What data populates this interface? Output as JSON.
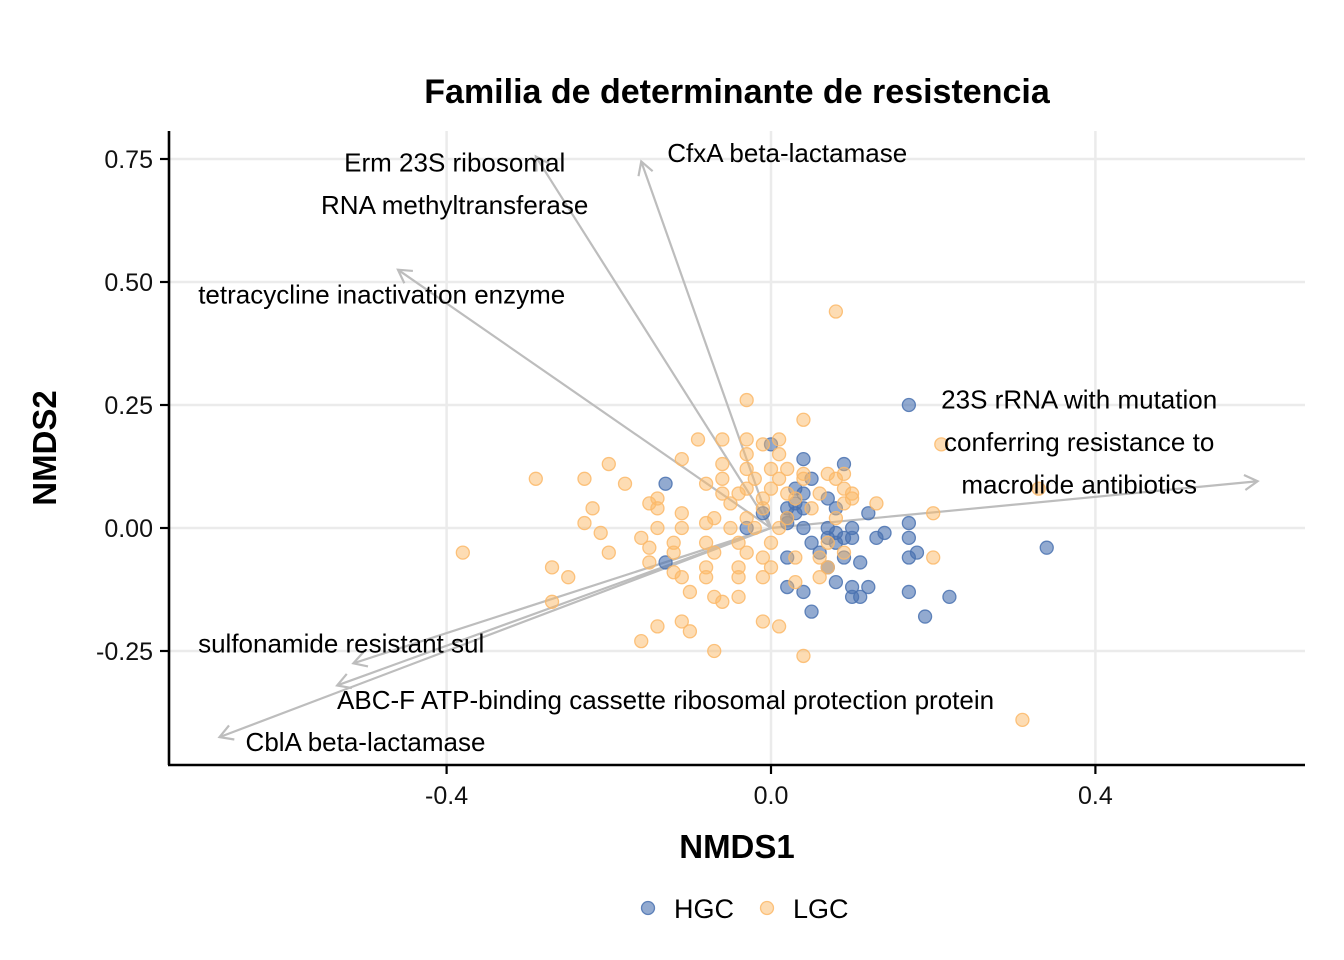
{
  "chart_data": {
    "type": "scatter",
    "title": "Familia de determinante de resistencia",
    "xlabel": "NMDS1",
    "ylabel": "NMDS2",
    "xlim": [
      -0.74,
      0.66
    ],
    "ylim": [
      -0.47,
      0.81
    ],
    "x_ticks": [
      -0.4,
      0.0,
      0.4
    ],
    "x_tick_labels": [
      "-0.4",
      "0.0",
      "0.4"
    ],
    "y_ticks": [
      -0.25,
      0.0,
      0.25,
      0.5,
      0.75
    ],
    "y_tick_labels": [
      "-0.25",
      "0.00",
      "0.25",
      "0.50",
      "0.75"
    ],
    "grid": true,
    "legend_position": "bottom",
    "series": [
      {
        "name": "HGC",
        "color": "#4a72b0",
        "points": [
          [
            0.0,
            0.17
          ],
          [
            0.04,
            0.14
          ],
          [
            0.09,
            0.13
          ],
          [
            0.17,
            0.25
          ],
          [
            0.34,
            -0.04
          ],
          [
            0.05,
            0.1
          ],
          [
            0.07,
            0.06
          ],
          [
            0.03,
            0.08
          ],
          [
            0.04,
            0.07
          ],
          [
            0.03,
            0.05
          ],
          [
            0.04,
            0.04
          ],
          [
            0.02,
            0.04
          ],
          [
            0.03,
            0.03
          ],
          [
            0.02,
            0.02
          ],
          [
            0.02,
            0.01
          ],
          [
            0.04,
            0.0
          ],
          [
            0.07,
            0.0
          ],
          [
            0.08,
            -0.01
          ],
          [
            0.09,
            -0.02
          ],
          [
            0.07,
            -0.02
          ],
          [
            0.05,
            -0.03
          ],
          [
            0.08,
            -0.03
          ],
          [
            0.1,
            0.0
          ],
          [
            0.12,
            0.03
          ],
          [
            0.14,
            -0.01
          ],
          [
            0.13,
            -0.02
          ],
          [
            0.1,
            -0.02
          ],
          [
            0.08,
            0.04
          ],
          [
            -0.01,
            0.03
          ],
          [
            -0.03,
            0.0
          ],
          [
            0.17,
            0.01
          ],
          [
            0.17,
            -0.02
          ],
          [
            0.02,
            -0.06
          ],
          [
            0.06,
            -0.05
          ],
          [
            0.09,
            -0.06
          ],
          [
            0.11,
            -0.07
          ],
          [
            0.07,
            -0.08
          ],
          [
            0.17,
            -0.06
          ],
          [
            0.18,
            -0.05
          ],
          [
            0.02,
            -0.12
          ],
          [
            0.04,
            -0.13
          ],
          [
            0.08,
            -0.11
          ],
          [
            0.1,
            -0.12
          ],
          [
            0.12,
            -0.12
          ],
          [
            0.1,
            -0.14
          ],
          [
            0.11,
            -0.14
          ],
          [
            0.05,
            -0.17
          ],
          [
            0.17,
            -0.13
          ],
          [
            0.19,
            -0.18
          ],
          [
            0.22,
            -0.14
          ],
          [
            -0.13,
            0.09
          ],
          [
            -0.13,
            -0.07
          ]
        ]
      },
      {
        "name": "LGC",
        "color": "#fbb968",
        "points": [
          [
            0.08,
            0.44
          ],
          [
            -0.03,
            0.26
          ],
          [
            0.04,
            0.22
          ],
          [
            0.21,
            0.17
          ],
          [
            0.33,
            0.08
          ],
          [
            0.2,
            0.03
          ],
          [
            0.2,
            -0.06
          ],
          [
            0.31,
            -0.39
          ],
          [
            -0.38,
            -0.05
          ],
          [
            -0.29,
            0.1
          ],
          [
            -0.23,
            0.1
          ],
          [
            -0.2,
            0.13
          ],
          [
            -0.18,
            0.09
          ],
          [
            -0.22,
            0.04
          ],
          [
            -0.23,
            0.01
          ],
          [
            -0.21,
            -0.01
          ],
          [
            -0.2,
            -0.05
          ],
          [
            -0.27,
            -0.08
          ],
          [
            -0.25,
            -0.1
          ],
          [
            -0.27,
            -0.15
          ],
          [
            -0.15,
            0.05
          ],
          [
            -0.14,
            0.06
          ],
          [
            -0.14,
            0.04
          ],
          [
            -0.11,
            0.14
          ],
          [
            -0.09,
            0.18
          ],
          [
            -0.06,
            0.18
          ],
          [
            -0.03,
            0.18
          ],
          [
            -0.01,
            0.17
          ],
          [
            0.01,
            0.18
          ],
          [
            0.01,
            0.15
          ],
          [
            -0.03,
            0.15
          ],
          [
            -0.06,
            0.13
          ],
          [
            -0.03,
            0.12
          ],
          [
            0.0,
            0.12
          ],
          [
            0.02,
            0.12
          ],
          [
            0.04,
            0.11
          ],
          [
            0.07,
            0.11
          ],
          [
            0.09,
            0.11
          ],
          [
            -0.06,
            0.1
          ],
          [
            -0.02,
            0.1
          ],
          [
            0.01,
            0.1
          ],
          [
            0.04,
            0.1
          ],
          [
            0.08,
            0.1
          ],
          [
            0.09,
            0.08
          ],
          [
            -0.08,
            0.09
          ],
          [
            -0.03,
            0.08
          ],
          [
            0.0,
            0.08
          ],
          [
            0.02,
            0.07
          ],
          [
            0.06,
            0.07
          ],
          [
            0.1,
            0.07
          ],
          [
            -0.06,
            0.07
          ],
          [
            -0.04,
            0.07
          ],
          [
            -0.01,
            0.06
          ],
          [
            0.03,
            0.06
          ],
          [
            0.09,
            0.05
          ],
          [
            0.13,
            0.05
          ],
          [
            0.1,
            0.06
          ],
          [
            -0.05,
            0.05
          ],
          [
            -0.01,
            0.04
          ],
          [
            0.05,
            0.04
          ],
          [
            -0.11,
            0.03
          ],
          [
            -0.07,
            0.02
          ],
          [
            -0.03,
            0.02
          ],
          [
            0.02,
            0.02
          ],
          [
            0.08,
            0.02
          ],
          [
            -0.14,
            0.0
          ],
          [
            -0.11,
            0.0
          ],
          [
            -0.08,
            0.01
          ],
          [
            -0.05,
            0.0
          ],
          [
            -0.02,
            0.0
          ],
          [
            0.01,
            0.0
          ],
          [
            -0.16,
            -0.02
          ],
          [
            -0.12,
            -0.03
          ],
          [
            -0.08,
            -0.03
          ],
          [
            -0.04,
            -0.03
          ],
          [
            0.0,
            -0.03
          ],
          [
            0.07,
            -0.03
          ],
          [
            -0.15,
            -0.04
          ],
          [
            -0.12,
            -0.05
          ],
          [
            -0.07,
            -0.05
          ],
          [
            -0.03,
            -0.05
          ],
          [
            -0.01,
            -0.06
          ],
          [
            0.03,
            -0.06
          ],
          [
            0.06,
            -0.06
          ],
          [
            0.09,
            -0.05
          ],
          [
            -0.15,
            -0.07
          ],
          [
            -0.12,
            -0.09
          ],
          [
            -0.08,
            -0.08
          ],
          [
            -0.04,
            -0.08
          ],
          [
            0.0,
            -0.08
          ],
          [
            0.07,
            -0.08
          ],
          [
            -0.11,
            -0.1
          ],
          [
            -0.08,
            -0.1
          ],
          [
            -0.04,
            -0.1
          ],
          [
            -0.01,
            -0.1
          ],
          [
            0.03,
            -0.11
          ],
          [
            0.06,
            -0.1
          ],
          [
            -0.1,
            -0.13
          ],
          [
            -0.07,
            -0.14
          ],
          [
            -0.06,
            -0.15
          ],
          [
            -0.04,
            -0.14
          ],
          [
            -0.11,
            -0.19
          ],
          [
            -0.14,
            -0.2
          ],
          [
            -0.16,
            -0.23
          ],
          [
            -0.1,
            -0.21
          ],
          [
            -0.01,
            -0.19
          ],
          [
            0.01,
            -0.2
          ],
          [
            -0.07,
            -0.25
          ],
          [
            0.04,
            -0.26
          ]
        ]
      }
    ],
    "vectors": [
      {
        "label_lines": [
          "CfxA beta-lactamase"
        ],
        "end": [
          -0.16,
          0.745
        ],
        "label_at": [
          0.02,
          0.762
        ],
        "anchor": "middle"
      },
      {
        "label_lines": [
          "Erm 23S ribosomal",
          "RNA methyltransferase"
        ],
        "end": [
          -0.29,
          0.755
        ],
        "label_at": [
          -0.39,
          0.7
        ],
        "anchor": "middle"
      },
      {
        "label_lines": [
          "tetracycline inactivation enzyme"
        ],
        "end": [
          -0.46,
          0.525
        ],
        "label_at": [
          -0.48,
          0.475
        ],
        "anchor": "middle"
      },
      {
        "label_lines": [
          "23S rRNA with mutation",
          "conferring resistance to",
          "macrolide antibiotics"
        ],
        "end": [
          0.6,
          0.095
        ],
        "label_at": [
          0.38,
          0.175
        ],
        "anchor": "middle"
      },
      {
        "label_lines": [
          "sulfonamide resistant sul"
        ],
        "end": [
          -0.515,
          -0.275
        ],
        "label_at": [
          -0.53,
          -0.235
        ],
        "anchor": "middle"
      },
      {
        "label_lines": [
          "ABC-F ATP-binding cassette ribosomal protection protein"
        ],
        "end": [
          -0.535,
          -0.32
        ],
        "label_at": [
          -0.13,
          -0.35
        ],
        "anchor": "middle"
      },
      {
        "label_lines": [
          "CblA beta-lactamase"
        ],
        "end": [
          -0.68,
          -0.425
        ],
        "label_at": [
          -0.5,
          -0.435
        ],
        "anchor": "middle"
      }
    ]
  }
}
